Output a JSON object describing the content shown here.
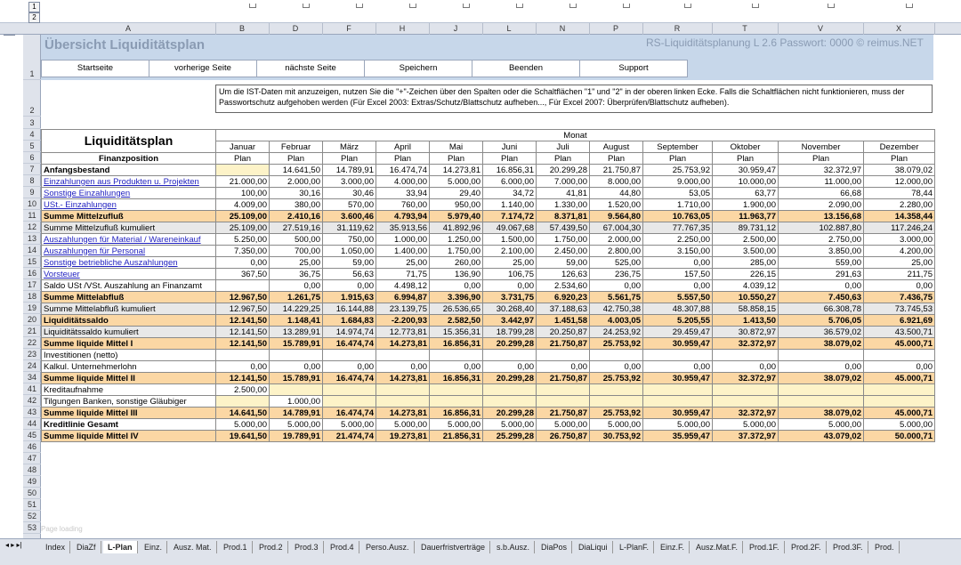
{
  "outline": {
    "levels": [
      "1",
      "2"
    ]
  },
  "columns": [
    "A",
    "B",
    "D",
    "F",
    "H",
    "J",
    "L",
    "N",
    "P",
    "R",
    "T",
    "V",
    "X"
  ],
  "row_numbers": [
    "1",
    "2",
    "3",
    "4",
    "5",
    "6",
    "7",
    "8",
    "9",
    "10",
    "11",
    "12",
    "13",
    "14",
    "15",
    "16",
    "17",
    "18",
    "19",
    "20",
    "21",
    "22",
    "23",
    "24",
    "34",
    "41",
    "42",
    "43",
    "44",
    "45",
    "46",
    "47",
    "48",
    "49",
    "50",
    "51",
    "52",
    "53"
  ],
  "title": "Übersicht Liquiditätsplan",
  "version": "RS-Liquiditätsplanung L 2.6   Passwort: 0000  © reimus.NET",
  "nav_buttons": [
    "Startseite",
    "vorherige Seite",
    "nächste Seite",
    "Speichern",
    "Beenden",
    "Support"
  ],
  "info_text": "Um die IST-Daten mit anzuzeigen, nutzen Sie die \"+\"-Zeichen über den Spalten oder die Schaltflächen \"1\" und \"2\" in der oberen linken Ecke. Falls die Schaltflächen nicht funktionieren, muss der Passwortschutz aufgehoben werden (Für Excel 2003: Extras/Schutz/Blattschutz aufheben..., Für Excel 2007: Überprüfen/Blattschutz aufheben).",
  "table": {
    "heading": "Liquiditätsplan",
    "subheading": "Finanzposition",
    "monat": "Monat",
    "months": [
      "Januar",
      "Februar",
      "März",
      "April",
      "Mai",
      "Juni",
      "Juli",
      "August",
      "September",
      "Oktober",
      "November",
      "Dezember"
    ],
    "plan": "Plan",
    "rows": [
      {
        "label": "Anfangsbestand",
        "style": "bold",
        "values": [
          "",
          "14.641,50",
          "14.789,91",
          "16.474,74",
          "14.273,81",
          "16.856,31",
          "20.299,28",
          "21.750,87",
          "25.753,92",
          "30.959,47",
          "32.372,97",
          "38.079,02"
        ]
      },
      {
        "label": "Einzahlungen aus Produkten u. Projekten",
        "style": "link",
        "values": [
          "21.000,00",
          "2.000,00",
          "3.000,00",
          "4.000,00",
          "5.000,00",
          "6.000,00",
          "7.000,00",
          "8.000,00",
          "9.000,00",
          "10.000,00",
          "11.000,00",
          "12.000,00"
        ]
      },
      {
        "label": "Sonstige Einzahlungen",
        "style": "link",
        "values": [
          "100,00",
          "30,16",
          "30,46",
          "33,94",
          "29,40",
          "34,72",
          "41,81",
          "44,80",
          "53,05",
          "63,77",
          "66,68",
          "78,44"
        ]
      },
      {
        "label": "USt.- Einzahlungen",
        "style": "link",
        "values": [
          "4.009,00",
          "380,00",
          "570,00",
          "760,00",
          "950,00",
          "1.140,00",
          "1.330,00",
          "1.520,00",
          "1.710,00",
          "1.900,00",
          "2.090,00",
          "2.280,00"
        ]
      },
      {
        "label": "Summe Mittelzufluß",
        "style": "sum",
        "values": [
          "25.109,00",
          "2.410,16",
          "3.600,46",
          "4.793,94",
          "5.979,40",
          "7.174,72",
          "8.371,81",
          "9.564,80",
          "10.763,05",
          "11.963,77",
          "13.156,68",
          "14.358,44"
        ]
      },
      {
        "label": "Summe Mittelzufluß kumuliert",
        "style": "cum",
        "values": [
          "25.109,00",
          "27.519,16",
          "31.119,62",
          "35.913,56",
          "41.892,96",
          "49.067,68",
          "57.439,50",
          "67.004,30",
          "77.767,35",
          "89.731,12",
          "102.887,80",
          "117.246,24"
        ]
      },
      {
        "label": "Auszahlungen für Material / Wareneinkauf",
        "style": "link",
        "values": [
          "5.250,00",
          "500,00",
          "750,00",
          "1.000,00",
          "1.250,00",
          "1.500,00",
          "1.750,00",
          "2.000,00",
          "2.250,00",
          "2.500,00",
          "2.750,00",
          "3.000,00"
        ]
      },
      {
        "label": "Auszahlungen für Personal",
        "style": "link",
        "values": [
          "7.350,00",
          "700,00",
          "1.050,00",
          "1.400,00",
          "1.750,00",
          "2.100,00",
          "2.450,00",
          "2.800,00",
          "3.150,00",
          "3.500,00",
          "3.850,00",
          "4.200,00"
        ]
      },
      {
        "label": "Sonstige betriebliche Auszahlungen",
        "style": "link",
        "values": [
          "0,00",
          "25,00",
          "59,00",
          "25,00",
          "260,00",
          "25,00",
          "59,00",
          "525,00",
          "0,00",
          "285,00",
          "559,00",
          "25,00"
        ]
      },
      {
        "label": "Vorsteuer",
        "style": "link",
        "values": [
          "367,50",
          "36,75",
          "56,63",
          "71,75",
          "136,90",
          "106,75",
          "126,63",
          "236,75",
          "157,50",
          "226,15",
          "291,63",
          "211,75"
        ]
      },
      {
        "label": "Saldo USt /VSt. Auszahlung an Finanzamt",
        "style": "plain",
        "values": [
          "",
          "0,00",
          "0,00",
          "4.498,12",
          "0,00",
          "0,00",
          "2.534,60",
          "0,00",
          "0,00",
          "4.039,12",
          "0,00",
          "0,00"
        ]
      },
      {
        "label": "Summe Mittelabfluß",
        "style": "sum",
        "values": [
          "12.967,50",
          "1.261,75",
          "1.915,63",
          "6.994,87",
          "3.396,90",
          "3.731,75",
          "6.920,23",
          "5.561,75",
          "5.557,50",
          "10.550,27",
          "7.450,63",
          "7.436,75"
        ]
      },
      {
        "label": "Summe Mittelabfluß kumuliert",
        "style": "cum",
        "values": [
          "12.967,50",
          "14.229,25",
          "16.144,88",
          "23.139,75",
          "26.536,65",
          "30.268,40",
          "37.188,63",
          "42.750,38",
          "48.307,88",
          "58.858,15",
          "66.308,78",
          "73.745,53"
        ]
      },
      {
        "label": "Liquiditätssaldo",
        "style": "sum",
        "values": [
          "12.141,50",
          "1.148,41",
          "1.684,83",
          "-2.200,93",
          "2.582,50",
          "3.442,97",
          "1.451,58",
          "4.003,05",
          "5.205,55",
          "1.413,50",
          "5.706,05",
          "6.921,69"
        ]
      },
      {
        "label": "Liquiditätssaldo  kumuliert",
        "style": "cum",
        "values": [
          "12.141,50",
          "13.289,91",
          "14.974,74",
          "12.773,81",
          "15.356,31",
          "18.799,28",
          "20.250,87",
          "24.253,92",
          "29.459,47",
          "30.872,97",
          "36.579,02",
          "43.500,71"
        ]
      },
      {
        "label": "Summe liquide Mittel I",
        "style": "sum",
        "values": [
          "12.141,50",
          "15.789,91",
          "16.474,74",
          "14.273,81",
          "16.856,31",
          "20.299,28",
          "21.750,87",
          "25.753,92",
          "30.959,47",
          "32.372,97",
          "38.079,02",
          "45.000,71"
        ]
      },
      {
        "label": "Investitionen (netto)",
        "style": "plain",
        "values": [
          "",
          "",
          "",
          "",
          "",
          "",
          "",
          "",
          "",
          "",
          "",
          ""
        ]
      },
      {
        "label": "Kalkul. Unternehmerlohn",
        "style": "plain",
        "values": [
          "0,00",
          "0,00",
          "0,00",
          "0,00",
          "0,00",
          "0,00",
          "0,00",
          "0,00",
          "0,00",
          "0,00",
          "0,00",
          "0,00"
        ]
      },
      {
        "label": "Summe liquide Mittel II",
        "style": "sum",
        "values": [
          "12.141,50",
          "15.789,91",
          "16.474,74",
          "14.273,81",
          "16.856,31",
          "20.299,28",
          "21.750,87",
          "25.753,92",
          "30.959,47",
          "32.372,97",
          "38.079,02",
          "45.000,71"
        ]
      },
      {
        "label": "Kreditaufnahme",
        "style": "plain",
        "values": [
          "2.500,00",
          "",
          "",
          "",
          "",
          "",
          "",
          "",
          "",
          "",
          "",
          ""
        ]
      },
      {
        "label": "Tilgungen Banken, sonstige Gläubiger",
        "style": "plain",
        "values": [
          "",
          "1.000,00",
          "",
          "",
          "",
          "",
          "",
          "",
          "",
          "",
          "",
          ""
        ]
      },
      {
        "label": "Summe liquide Mittel III",
        "style": "sum",
        "values": [
          "14.641,50",
          "14.789,91",
          "16.474,74",
          "14.273,81",
          "16.856,31",
          "20.299,28",
          "21.750,87",
          "25.753,92",
          "30.959,47",
          "32.372,97",
          "38.079,02",
          "45.000,71"
        ]
      },
      {
        "label": "Kreditlinie Gesamt",
        "style": "bold",
        "values": [
          "5.000,00",
          "5.000,00",
          "5.000,00",
          "5.000,00",
          "5.000,00",
          "5.000,00",
          "5.000,00",
          "5.000,00",
          "5.000,00",
          "5.000,00",
          "5.000,00",
          "5.000,00"
        ]
      },
      {
        "label": "Summe liquide Mittel IV",
        "style": "sum",
        "values": [
          "19.641,50",
          "19.789,91",
          "21.474,74",
          "19.273,81",
          "21.856,31",
          "25.299,28",
          "26.750,87",
          "30.753,92",
          "35.959,47",
          "37.372,97",
          "43.079,02",
          "50.000,71"
        ]
      }
    ]
  },
  "watermark": "Page loading",
  "sheet_tabs": [
    "Index",
    "DiaZf",
    "L-Plan",
    "Einz.",
    "Ausz. Mat.",
    "Prod.1",
    "Prod.2",
    "Prod.3",
    "Prod.4",
    "Perso.Ausz.",
    "Dauerfristverträge",
    "s.b.Ausz.",
    "DiaPos",
    "DiaLiqui",
    "L-PlanF.",
    "Einz.F.",
    "Ausz.Mat.F.",
    "Prod.1F.",
    "Prod.2F.",
    "Prod.3F.",
    "Prod."
  ],
  "active_tab": "L-Plan"
}
